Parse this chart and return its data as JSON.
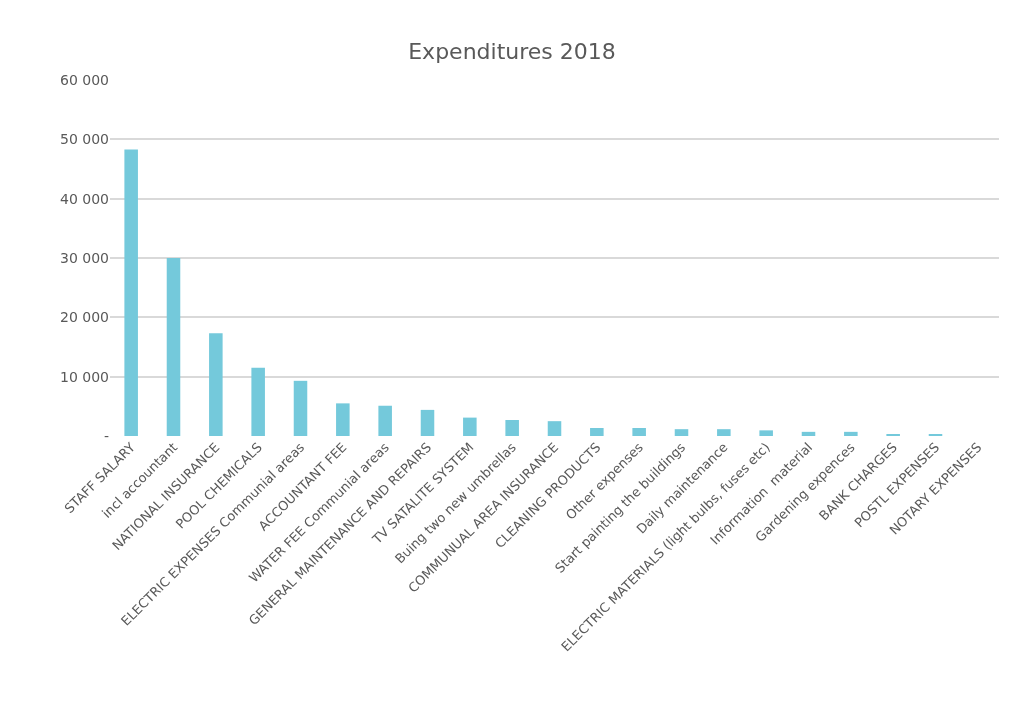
{
  "chart_data": {
    "type": "bar",
    "title": "Expenditures 2018",
    "categories": [
      "STAFF SALARY",
      "incl accountant",
      "NATIONAL INSURANCE",
      "POOL CHEMICALS",
      "ELECTRIC EXPENSES Communial areas",
      "ACCOUNTANT FEE",
      "WATER FEE Communial areas",
      "GENERAL MAINTENANCE AND REPAIRS",
      "TV SATALITE SYSTEM",
      "Buing two new umbrellas",
      "COMMUNUAL AREA INSURANCE",
      "CLEANING PRODUCTS",
      "Other expenses",
      "Start painting the buildings",
      "Daily maintenance",
      "ELECTRIC MATERIALS (light bulbs, fuses etc)",
      "Information  material",
      "Gardening expences",
      "BANK CHARGES",
      "POSTL EXPENSES",
      "NOTARY EXPENSES"
    ],
    "values": [
      48300,
      30000,
      17300,
      11500,
      9300,
      5500,
      5100,
      4400,
      3100,
      2700,
      2500,
      1350,
      1350,
      1150,
      1150,
      950,
      700,
      700,
      340,
      340,
      0
    ],
    "color": "#74c9db",
    "ylim": [
      0,
      60000
    ],
    "yticks": [
      {
        "value": 0,
        "label": "-"
      },
      {
        "value": 10000,
        "label": "10 000"
      },
      {
        "value": 20000,
        "label": "20 000"
      },
      {
        "value": 30000,
        "label": "30 000"
      },
      {
        "value": 40000,
        "label": "40 000"
      },
      {
        "value": 50000,
        "label": "50 000"
      },
      {
        "value": 60000,
        "label": "60 000"
      }
    ],
    "grid": "y",
    "legend": false
  }
}
